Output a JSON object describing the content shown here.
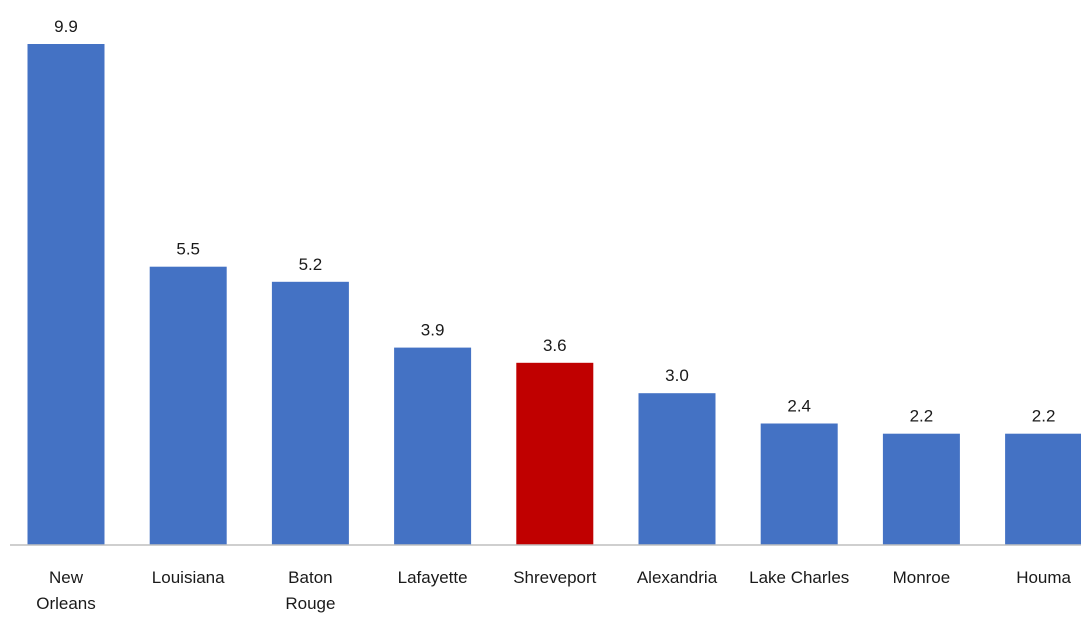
{
  "chart_data": {
    "type": "bar",
    "categories": [
      "New Orleans",
      "Louisiana",
      "Baton Rouge",
      "Lafayette",
      "Shreveport",
      "Alexandria",
      "Lake Charles",
      "Monroe",
      "Houma"
    ],
    "category_lines": [
      [
        "New",
        "Orleans"
      ],
      [
        "Louisiana"
      ],
      [
        "Baton",
        "Rouge"
      ],
      [
        "Lafayette"
      ],
      [
        "Shreveport"
      ],
      [
        "Alexandria"
      ],
      [
        "Lake Charles"
      ],
      [
        "Monroe"
      ],
      [
        "Houma"
      ]
    ],
    "values": [
      9.9,
      5.5,
      5.2,
      3.9,
      3.6,
      3.0,
      2.4,
      2.2,
      2.2
    ],
    "data_labels": [
      "9.9",
      "5.5",
      "5.2",
      "3.9",
      "3.6",
      "3.0",
      "2.4",
      "2.2",
      "2.2"
    ],
    "bar_colors": [
      "#4472C4",
      "#4472C4",
      "#4472C4",
      "#4472C4",
      "#C00000",
      "#4472C4",
      "#4472C4",
      "#4472C4",
      "#4472C4"
    ],
    "axis_color": "#BFBFBF",
    "ylim": [
      0,
      9.9
    ],
    "grid": false,
    "legend": "none",
    "title": "",
    "xlabel": "",
    "ylabel": ""
  }
}
